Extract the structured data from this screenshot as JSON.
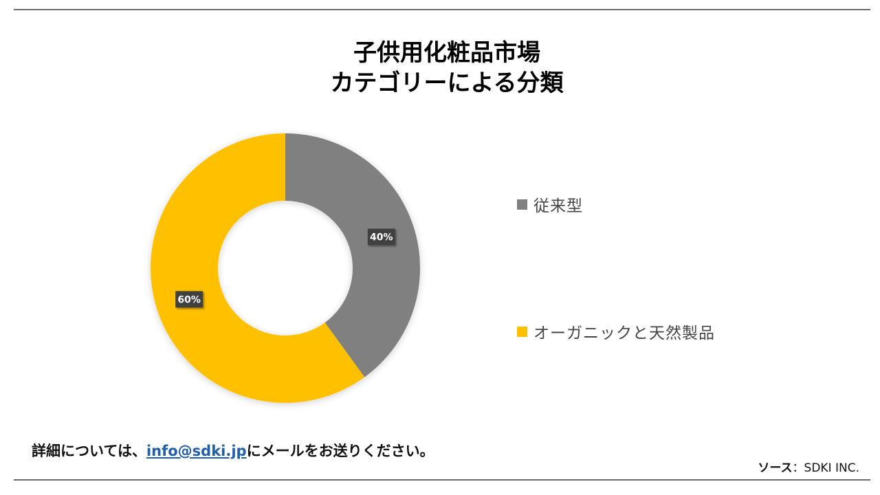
{
  "title": {
    "line1": "子供用化粧品市場",
    "line2": "カテゴリーによる分類"
  },
  "chart_data": {
    "type": "pie",
    "donut": true,
    "series": [
      {
        "name": "従来型",
        "value": 40,
        "label": "40%",
        "color": "#808080"
      },
      {
        "name": "オーガニックと天然製品",
        "value": 60,
        "label": "60%",
        "color": "#FFC000"
      }
    ],
    "legend_placement": "right",
    "data_label_style": "dark-boxed"
  },
  "legend": {
    "item1": "従来型",
    "item2": "オーガニックと天然製品"
  },
  "footer": {
    "contact_before": "詳細については、",
    "contact_email": "info@sdki.jp",
    "contact_after": "にメールをお送りください。",
    "source_label": "ソース",
    "source_value": "：SDKI INC."
  }
}
